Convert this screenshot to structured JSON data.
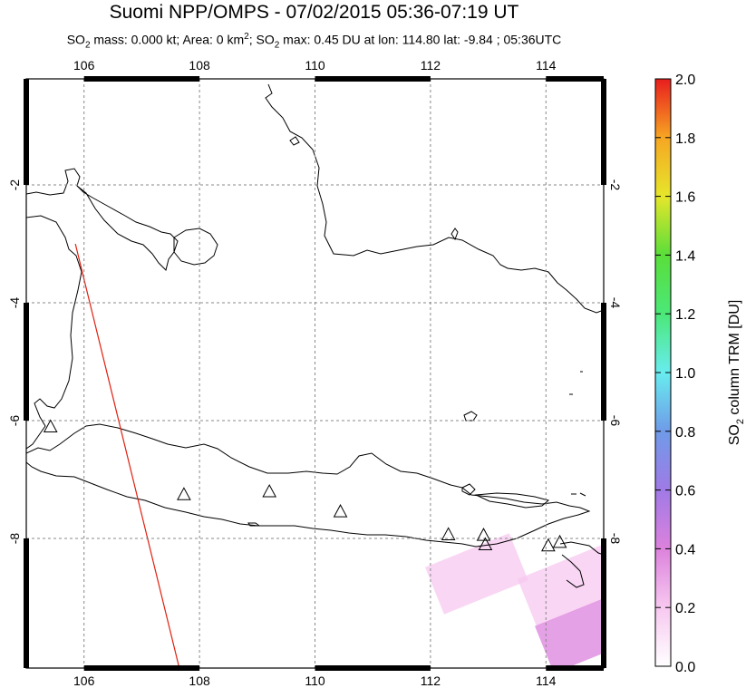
{
  "header": {
    "title": "Suomi NPP/OMPS - 07/02/2015 05:36-07:19 UT",
    "subtitle_parts": [
      "SO",
      "2",
      " mass: 0.000 kt; Area: 0 km",
      "2",
      "; SO",
      "2",
      " max: 0.45 DU at lon: 114.80 lat: -9.84 ; 05:36UTC"
    ]
  },
  "chart_data": {
    "type": "heatmap",
    "title": "Suomi NPP/OMPS - 07/02/2015 05:36-07:19 UT",
    "map": {
      "lon_range": [
        105,
        115
      ],
      "lat_range": [
        -10.2,
        -0.2
      ],
      "lon_ticks": [
        106,
        108,
        110,
        112,
        114
      ],
      "lon_tick_labels": [
        "106",
        "108",
        "110",
        "112",
        "114"
      ],
      "lat_ticks": [
        -2,
        -4,
        -6,
        -8
      ],
      "lat_tick_labels": [
        "-2",
        "-4",
        "-6",
        "-8"
      ],
      "grid": true,
      "grid_style": "dashed"
    },
    "colorbar": {
      "label_parts": [
        "SO",
        "2",
        " column TRM [DU]"
      ],
      "min": 0.0,
      "max": 2.0,
      "ticks": [
        0.0,
        0.2,
        0.4,
        0.6,
        0.8,
        1.0,
        1.2,
        1.4,
        1.6,
        1.8,
        2.0
      ],
      "tick_labels": [
        "0.0",
        "0.2",
        "0.4",
        "0.6",
        "0.8",
        "1.0",
        "1.2",
        "1.4",
        "1.6",
        "1.8",
        "2.0"
      ],
      "colors": [
        "#ffffff",
        "#f7c8f0",
        "#dc82dc",
        "#a07ae6",
        "#6f9be8",
        "#68ecef",
        "#4be878",
        "#5ade3a",
        "#e6e62a",
        "#f6a623",
        "#f06020",
        "#e81e1e"
      ]
    },
    "so2_max": {
      "value": 0.45,
      "lon": 114.8,
      "lat": -9.84
    },
    "volcanoes": [
      {
        "lon": 105.42,
        "lat": -6.1
      },
      {
        "lon": 107.73,
        "lat": -7.25
      },
      {
        "lon": 109.21,
        "lat": -7.2
      },
      {
        "lon": 110.44,
        "lat": -7.54
      },
      {
        "lon": 112.31,
        "lat": -7.93
      },
      {
        "lon": 112.92,
        "lat": -7.94
      },
      {
        "lon": 112.95,
        "lat": -8.1
      },
      {
        "lon": 114.04,
        "lat": -8.12
      },
      {
        "lon": 114.24,
        "lat": -8.06
      }
    ],
    "orbit_edge": {
      "color": "#e02010",
      "from": {
        "lon": 105.85,
        "lat": -3.0
      },
      "to": {
        "lon": 107.65,
        "lat": -10.2
      }
    }
  }
}
